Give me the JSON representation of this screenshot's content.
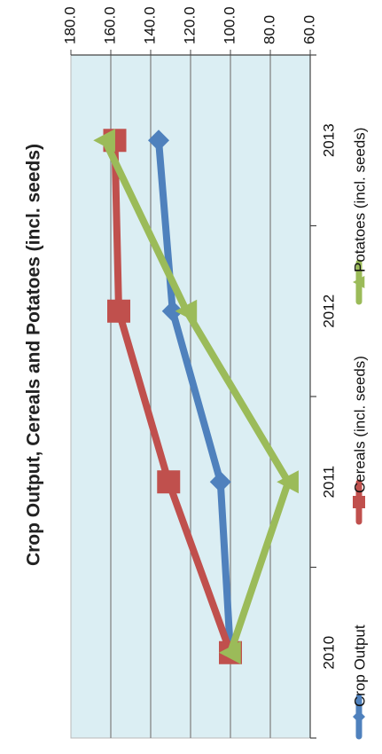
{
  "chart_data": {
    "type": "line",
    "title": "Crop Output, Cereals and Potatoes (incl. seeds)",
    "categories": [
      "2010",
      "2011",
      "2012",
      "2013"
    ],
    "series": [
      {
        "name": "Crop Output",
        "values": [
          100.0,
          105.0,
          129.0,
          136.0
        ],
        "color": "#4f81bd",
        "marker": "diamond"
      },
      {
        "name": "Cereals (incl. seeds)",
        "values": [
          100.0,
          131.0,
          156.0,
          158.0
        ],
        "color": "#c0504d",
        "marker": "square"
      },
      {
        "name": "Potatoes (incl. seeds)",
        "values": [
          100.0,
          71.0,
          122.0,
          163.0
        ],
        "color": "#9bbb59",
        "marker": "triangle"
      }
    ],
    "ylim": [
      60.0,
      180.0
    ],
    "yticks": [
      "60.0",
      "80.0",
      "100.0",
      "120.0",
      "140.0",
      "160.0",
      "180.0"
    ],
    "grid": true,
    "legend_position": "bottom",
    "plot_background": "#dbeef3",
    "orientation": "rotated 90° clockwise"
  }
}
